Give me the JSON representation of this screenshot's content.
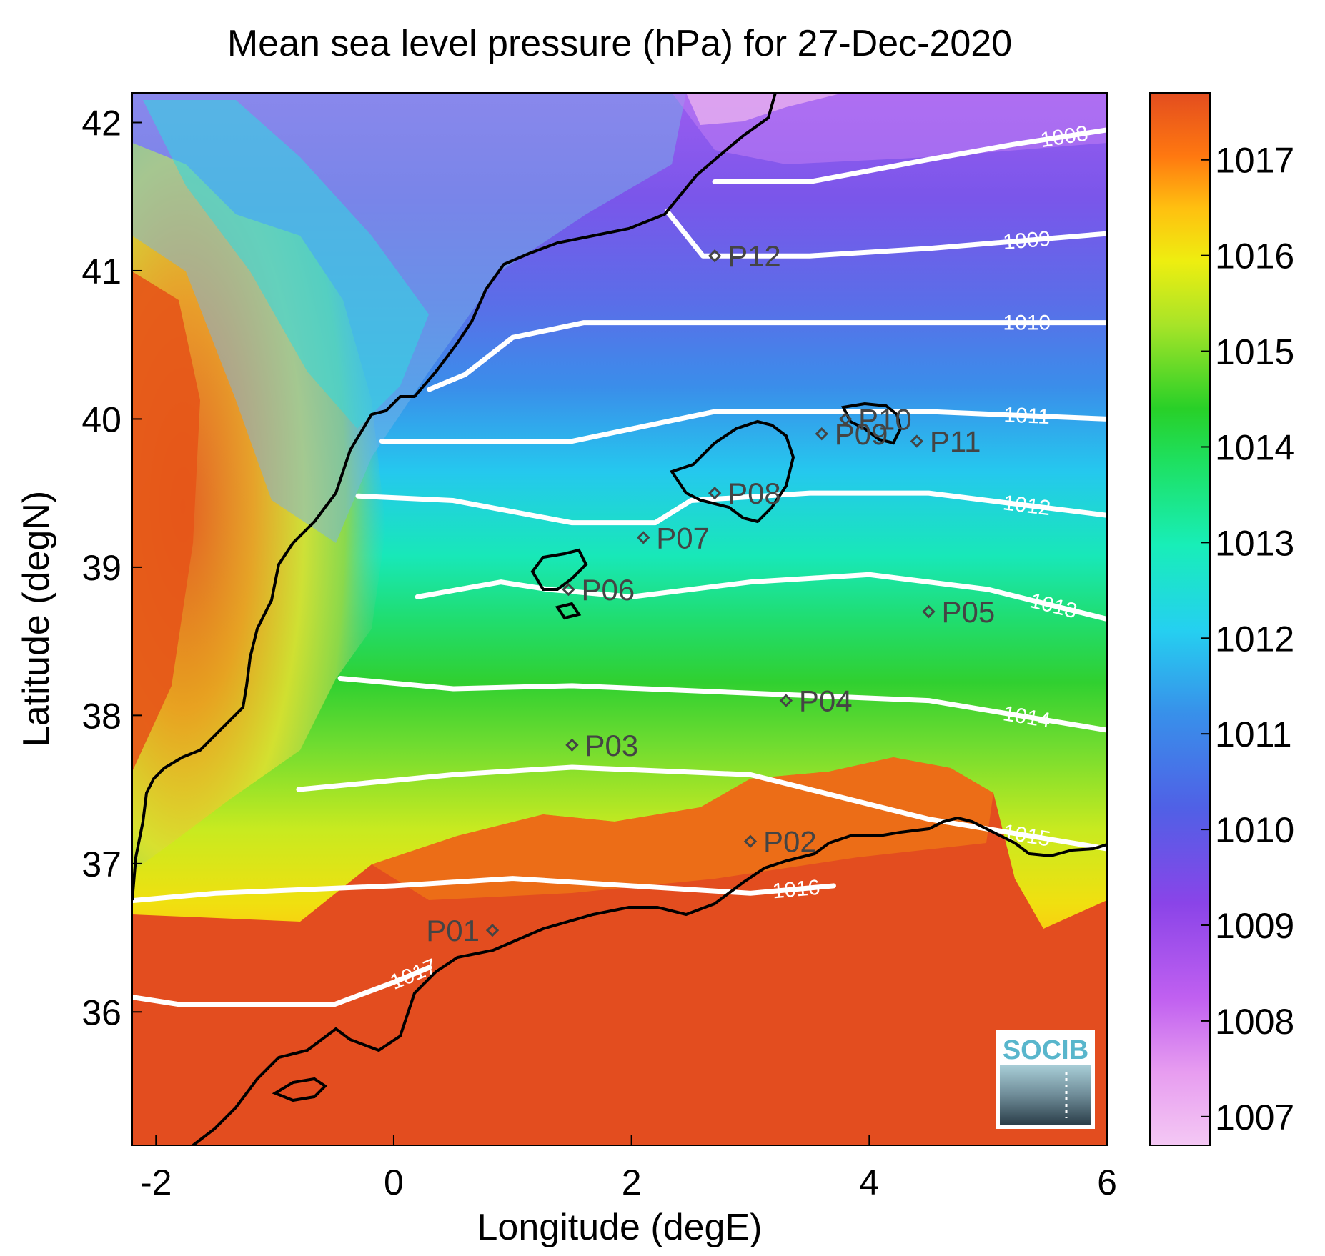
{
  "title": "Mean sea level pressure (hPa) for 27-Dec-2020",
  "xlabel": "Longitude (degE)",
  "ylabel": "Latitude (degN)",
  "x_ticks": [
    "-2",
    "0",
    "2",
    "4",
    "6"
  ],
  "y_ticks": [
    "36",
    "37",
    "38",
    "39",
    "40",
    "41",
    "42"
  ],
  "colorbar_ticks": [
    "1007",
    "1008",
    "1009",
    "1010",
    "1011",
    "1012",
    "1013",
    "1014",
    "1015",
    "1016",
    "1017"
  ],
  "logo_text": "SOCIB",
  "colors": {
    "colormap": [
      "#f0b8f0",
      "#bb55ee",
      "#6a3ae0",
      "#3a78e8",
      "#25c8ee",
      "#18eeb0",
      "#22cc28",
      "#90e030",
      "#eeee10",
      "#ffb010",
      "#ff6010",
      "#e34d1f"
    ],
    "land_high": "#e34d1f",
    "contour": "#ffffff",
    "coastline": "#000000",
    "station": "#444444"
  },
  "chart_data": {
    "type": "heatmap",
    "variable": "Mean sea level pressure (hPa)",
    "date": "27-Dec-2020",
    "xlim": [
      -2.2,
      6.0
    ],
    "ylim": [
      35.1,
      42.2
    ],
    "colorbar_range": [
      1006.7,
      1017.7
    ],
    "contours": [
      {
        "label": "1008",
        "points": [
          [
            2.7,
            41.6
          ],
          [
            3.5,
            41.6
          ],
          [
            4.5,
            41.75
          ],
          [
            5.2,
            41.85
          ],
          [
            6.0,
            41.95
          ]
        ]
      },
      {
        "label": "1009",
        "points": [
          [
            2.3,
            41.4
          ],
          [
            2.6,
            41.1
          ],
          [
            3.5,
            41.1
          ],
          [
            4.5,
            41.15
          ],
          [
            6.0,
            41.25
          ]
        ]
      },
      {
        "label": "1010",
        "points": [
          [
            0.3,
            40.2
          ],
          [
            0.6,
            40.3
          ],
          [
            1.0,
            40.55
          ],
          [
            1.6,
            40.65
          ],
          [
            3.0,
            40.65
          ],
          [
            4.5,
            40.65
          ],
          [
            6.0,
            40.65
          ]
        ]
      },
      {
        "label": "1011",
        "points": [
          [
            -0.1,
            39.85
          ],
          [
            0.3,
            39.85
          ],
          [
            1.5,
            39.85
          ],
          [
            2.1,
            39.95
          ],
          [
            2.7,
            40.05
          ],
          [
            4.5,
            40.05
          ],
          [
            6.0,
            40.0
          ]
        ]
      },
      {
        "label": "1012",
        "points": [
          [
            -0.3,
            39.48
          ],
          [
            0.5,
            39.45
          ],
          [
            1.5,
            39.3
          ],
          [
            2.2,
            39.3
          ],
          [
            2.5,
            39.45
          ],
          [
            3.5,
            39.5
          ],
          [
            4.5,
            39.5
          ],
          [
            6.0,
            39.35
          ]
        ]
      },
      {
        "label": "1013",
        "points": [
          [
            0.2,
            38.8
          ],
          [
            0.9,
            38.9
          ],
          [
            1.3,
            38.85
          ],
          [
            2.0,
            38.8
          ],
          [
            3.0,
            38.9
          ],
          [
            4.0,
            38.95
          ],
          [
            5.0,
            38.85
          ],
          [
            6.0,
            38.65
          ]
        ]
      },
      {
        "label": "1014",
        "points": [
          [
            -0.45,
            38.25
          ],
          [
            0.5,
            38.18
          ],
          [
            1.5,
            38.2
          ],
          [
            3.0,
            38.15
          ],
          [
            4.5,
            38.1
          ],
          [
            6.0,
            37.9
          ]
        ]
      },
      {
        "label": "1015",
        "points": [
          [
            -0.8,
            37.5
          ],
          [
            0.5,
            37.6
          ],
          [
            1.5,
            37.65
          ],
          [
            3.0,
            37.6
          ],
          [
            4.5,
            37.3
          ],
          [
            6.0,
            37.1
          ]
        ]
      },
      {
        "label": "1016",
        "points": [
          [
            -2.2,
            36.75
          ],
          [
            -1.5,
            36.8
          ],
          [
            0.0,
            36.85
          ],
          [
            1.0,
            36.9
          ],
          [
            2.0,
            36.85
          ],
          [
            3.0,
            36.8
          ],
          [
            3.7,
            36.85
          ]
        ]
      },
      {
        "label": "1017",
        "points": [
          [
            -2.2,
            36.1
          ],
          [
            -1.8,
            36.05
          ],
          [
            -0.5,
            36.05
          ],
          [
            0.0,
            36.2
          ],
          [
            0.3,
            36.3
          ]
        ]
      }
    ],
    "stations": [
      {
        "name": "P01",
        "lon": 0.83,
        "lat": 36.55
      },
      {
        "name": "P02",
        "lon": 3.0,
        "lat": 37.15
      },
      {
        "name": "P03",
        "lon": 1.5,
        "lat": 37.8
      },
      {
        "name": "P04",
        "lon": 3.3,
        "lat": 38.1
      },
      {
        "name": "P05",
        "lon": 4.5,
        "lat": 38.7
      },
      {
        "name": "P06",
        "lon": 1.47,
        "lat": 38.85
      },
      {
        "name": "P07",
        "lon": 2.1,
        "lat": 39.2
      },
      {
        "name": "P08",
        "lon": 2.7,
        "lat": 39.5
      },
      {
        "name": "P09",
        "lon": 3.6,
        "lat": 39.9
      },
      {
        "name": "P10",
        "lon": 3.8,
        "lat": 40.0
      },
      {
        "name": "P11",
        "lon": 4.4,
        "lat": 39.85
      },
      {
        "name": "P12",
        "lon": 2.7,
        "lat": 41.1
      }
    ]
  }
}
